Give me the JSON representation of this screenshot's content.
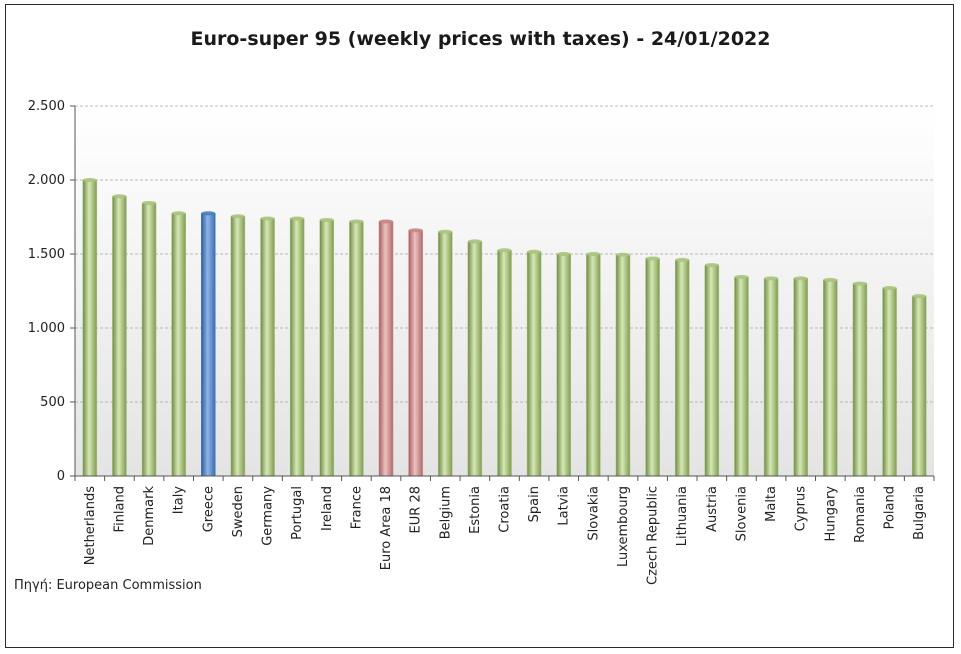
{
  "chart_data": {
    "type": "bar",
    "title": "Euro-super 95 (weekly prices with taxes) - 24/01/2022",
    "xlabel": "",
    "ylabel": "",
    "ylim": [
      0,
      2500
    ],
    "yticks": [
      0,
      500,
      1000,
      1500,
      2000,
      2500
    ],
    "ytick_labels": [
      "0",
      "500",
      "1.000",
      "1.500",
      "2.000",
      "2.500"
    ],
    "grid": true,
    "legend": "none",
    "categories": [
      "Netherlands",
      "Finland",
      "Denmark",
      "Italy",
      "Greece",
      "Sweden",
      "Germany",
      "Portugal",
      "Ireland",
      "France",
      "Euro Area 18",
      "EUR 28",
      "Belgium",
      "Estonia",
      "Croatia",
      "Spain",
      "Latvia",
      "Slovakia",
      "Luxembourg",
      "Czech Republic",
      "Lithuania",
      "Austria",
      "Slovenia",
      "Malta",
      "Cyprus",
      "Hungary",
      "Romania",
      "Poland",
      "Bulgaria"
    ],
    "values": [
      2000,
      1890,
      1845,
      1775,
      1775,
      1755,
      1740,
      1740,
      1730,
      1720,
      1720,
      1660,
      1650,
      1585,
      1525,
      1515,
      1500,
      1500,
      1495,
      1470,
      1460,
      1425,
      1345,
      1335,
      1335,
      1325,
      1300,
      1270,
      1215
    ],
    "colors": {
      "default": "#a9c47f",
      "highlight": "#4a7ebb",
      "aggregate": "#c98585"
    },
    "bar_color_keys": [
      "default",
      "default",
      "default",
      "default",
      "highlight",
      "default",
      "default",
      "default",
      "default",
      "default",
      "aggregate",
      "aggregate",
      "default",
      "default",
      "default",
      "default",
      "default",
      "default",
      "default",
      "default",
      "default",
      "default",
      "default",
      "default",
      "default",
      "default",
      "default",
      "default",
      "default"
    ]
  },
  "source": "Πηγή: European Commission"
}
